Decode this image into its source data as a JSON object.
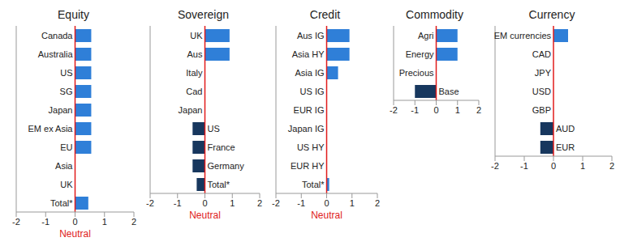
{
  "chart_data": [
    {
      "type": "bar",
      "title": "Equity",
      "orientation": "horizontal",
      "grid": false,
      "categories": [
        "Canada",
        "Australia",
        "US",
        "SG",
        "Japan",
        "EM ex Asia",
        "EU",
        "Asia",
        "UK",
        "Total*"
      ],
      "values": [
        0.55,
        0.55,
        0.55,
        0.55,
        0.55,
        0.55,
        0.55,
        0,
        0,
        0.45
      ],
      "colors": [
        "#2f7fd8",
        "#2f7fd8",
        "#2f7fd8",
        "#2f7fd8",
        "#2f7fd8",
        "#2f7fd8",
        "#2f7fd8",
        "#2f7fd8",
        "#2f7fd8",
        "#2f7fd8"
      ],
      "xlim": [
        -2,
        2
      ],
      "xticks": [
        -2,
        -1,
        0,
        1,
        2
      ],
      "annotation": "Neutral"
    },
    {
      "type": "bar",
      "title": "Sovereign",
      "orientation": "horizontal",
      "grid": false,
      "categories": [
        "UK",
        "Aus",
        "Italy",
        "Cad",
        "Japan",
        "US",
        "France",
        "Germany",
        "Total*"
      ],
      "values": [
        0.9,
        0.9,
        0,
        0,
        0,
        -0.45,
        -0.45,
        -0.45,
        -0.3
      ],
      "colors": [
        "#2f7fd8",
        "#2f7fd8",
        "#2f7fd8",
        "#2f7fd8",
        "#2f7fd8",
        "#17375e",
        "#17375e",
        "#17375e",
        "#17375e"
      ],
      "xlim": [
        -2,
        2
      ],
      "xticks": [
        -2,
        -1,
        0,
        1,
        2
      ],
      "annotation": "Neutral"
    },
    {
      "type": "bar",
      "title": "Credit",
      "orientation": "horizontal",
      "grid": false,
      "categories": [
        "Aus IG",
        "Asia HY",
        "Asia IG",
        "US IG",
        "EUR IG",
        "Japan IG",
        "US HY",
        "EUR HY",
        "Total*"
      ],
      "values": [
        0.9,
        0.9,
        0.45,
        0,
        0,
        0,
        0,
        0,
        0.1
      ],
      "colors": [
        "#2f7fd8",
        "#2f7fd8",
        "#2f7fd8",
        "#2f7fd8",
        "#2f7fd8",
        "#2f7fd8",
        "#2f7fd8",
        "#2f7fd8",
        "#2f7fd8"
      ],
      "xlim": [
        -2,
        2
      ],
      "xticks": [
        -2,
        -1,
        0,
        1,
        2
      ],
      "annotation": "Neutral"
    },
    {
      "type": "bar",
      "title": "Commodity",
      "orientation": "horizontal",
      "grid": false,
      "categories": [
        "Agri",
        "Energy",
        "Precious",
        "Base"
      ],
      "values": [
        1,
        1,
        0,
        -1
      ],
      "colors": [
        "#2f7fd8",
        "#2f7fd8",
        "#2f7fd8",
        "#17375e"
      ],
      "xlim": [
        -2,
        2
      ],
      "xticks": [
        -2,
        -1,
        0,
        1,
        2
      ]
    },
    {
      "type": "bar",
      "title": "Currency",
      "orientation": "horizontal",
      "grid": false,
      "categories": [
        "EM currencies",
        "CAD",
        "JPY",
        "USD",
        "GBP",
        "AUD",
        "EUR"
      ],
      "values": [
        0.5,
        0,
        0,
        0,
        0,
        -0.45,
        -0.45
      ],
      "colors": [
        "#2f7fd8",
        "#2f7fd8",
        "#2f7fd8",
        "#2f7fd8",
        "#2f7fd8",
        "#17375e",
        "#17375e"
      ],
      "xlim": [
        -2,
        2
      ],
      "xticks": [
        -2,
        -1,
        0,
        1,
        2
      ]
    }
  ]
}
